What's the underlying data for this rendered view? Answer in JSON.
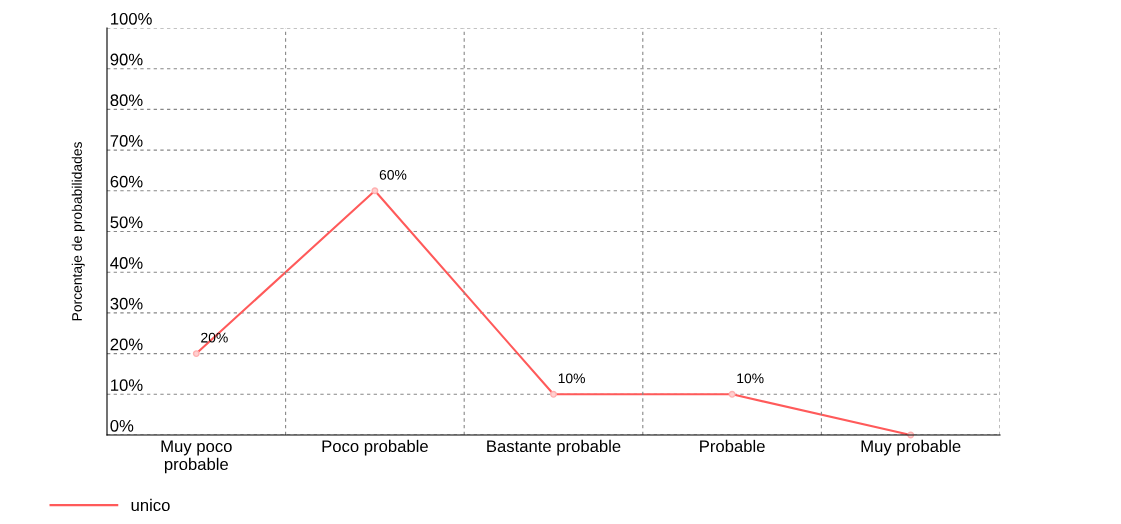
{
  "chart_data": {
    "type": "line",
    "ylabel": "Porcentaje de probabilidades",
    "categories": [
      "Muy poco\nprobable",
      "Poco probable",
      "Bastante probable",
      "Probable",
      "Muy probable"
    ],
    "series": [
      {
        "name": "unico",
        "color": "#ff5a5a",
        "values": [
          20,
          60,
          10,
          10,
          0
        ],
        "value_labels": [
          "20%",
          "60%",
          "10%",
          "10%",
          null
        ]
      }
    ],
    "ylim": [
      0,
      100
    ],
    "yticks": [
      {
        "value": 0,
        "label": "0%"
      },
      {
        "value": 10,
        "label": "10%"
      },
      {
        "value": 20,
        "label": "20%"
      },
      {
        "value": 30,
        "label": "30%"
      },
      {
        "value": 40,
        "label": "40%"
      },
      {
        "value": 50,
        "label": "50%"
      },
      {
        "value": 60,
        "label": "60%"
      },
      {
        "value": 70,
        "label": "70%"
      },
      {
        "value": 80,
        "label": "80%"
      },
      {
        "value": 90,
        "label": "90%"
      },
      {
        "value": 100,
        "label": "100%"
      }
    ],
    "grid": true,
    "legend": "bottom left",
    "marker": "circle",
    "line_style": "solid"
  }
}
